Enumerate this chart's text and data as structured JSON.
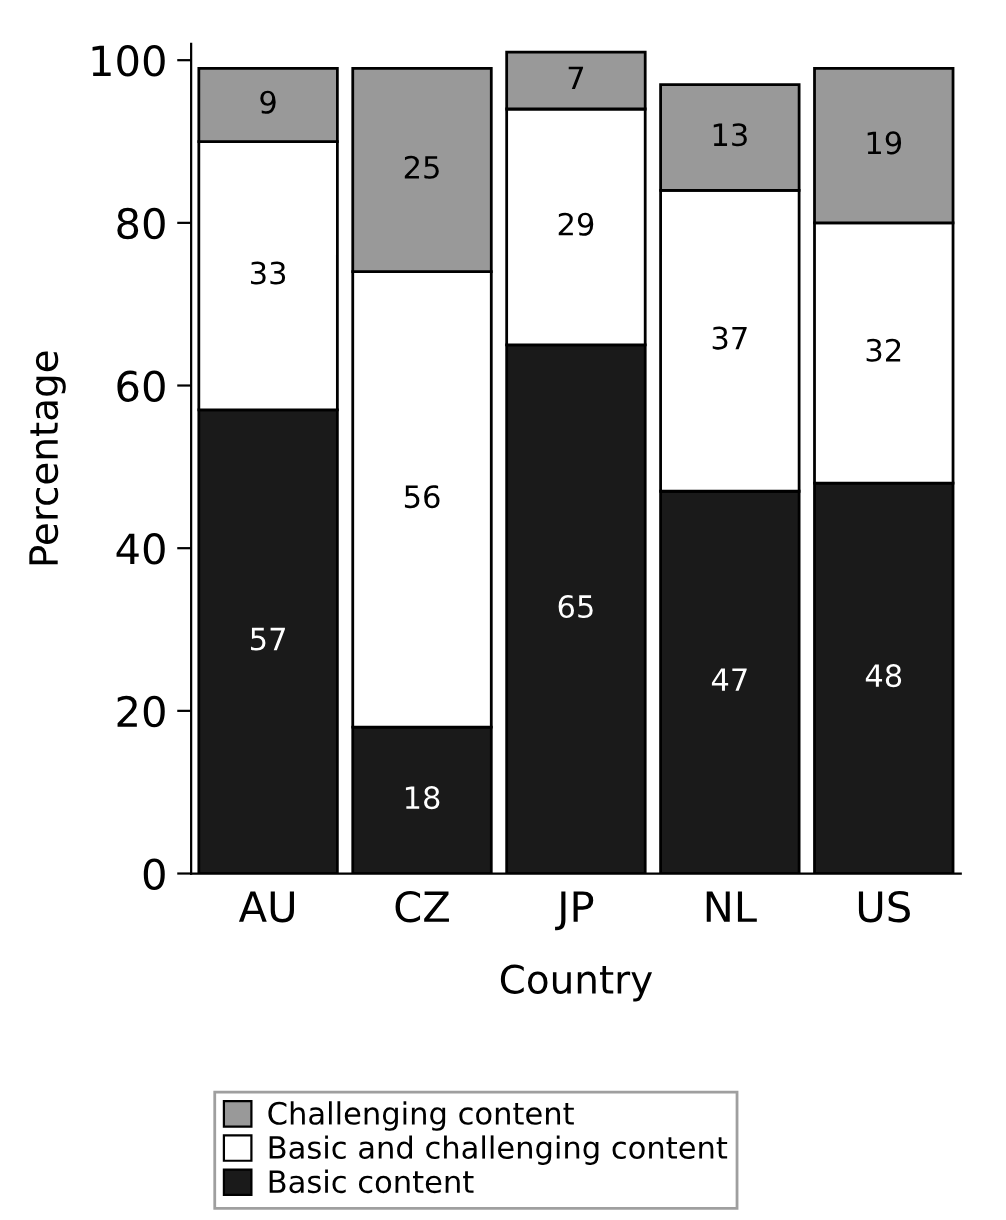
{
  "chart_data": {
    "type": "bar",
    "stacked": true,
    "xlabel": "Country",
    "ylabel": "Percentage",
    "categories": [
      "AU",
      "CZ",
      "JP",
      "NL",
      "US"
    ],
    "series": [
      {
        "name": "Basic content",
        "color": "#1a1a1a",
        "values": [
          57,
          18,
          65,
          47,
          48
        ]
      },
      {
        "name": "Basic and challenging content",
        "color": "#ffffff",
        "values": [
          33,
          56,
          29,
          37,
          32
        ]
      },
      {
        "name": "Challenging content",
        "color": "#999999",
        "values": [
          9,
          25,
          7,
          13,
          19
        ]
      }
    ],
    "ylim": [
      0,
      102
    ],
    "yticks": [
      0,
      20,
      40,
      60,
      80,
      100
    ],
    "grid": false,
    "legend": "bottom",
    "data_labels": true
  }
}
